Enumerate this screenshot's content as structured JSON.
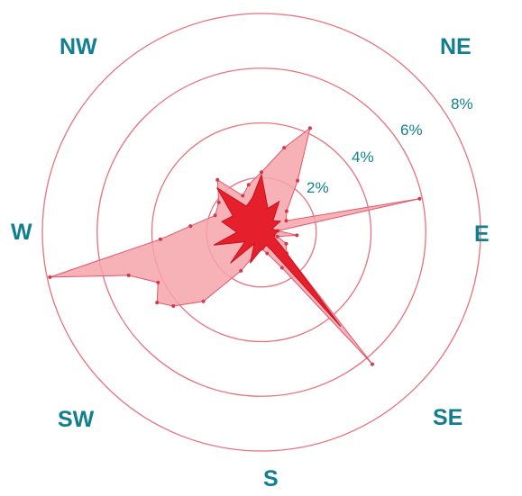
{
  "chart_data": {
    "type": "radar",
    "title": "",
    "directions": [
      "NW",
      "NE",
      "W",
      "E",
      "SW",
      "SE",
      "S"
    ],
    "ring_labels": [
      "2%",
      "4%",
      "6%",
      "8%"
    ],
    "rings": [
      2,
      4,
      6,
      8
    ],
    "max_value": 8,
    "angle_unit": "degrees (compass bearing, 0 = N, clockwise)",
    "colors": {
      "outer_fill": "#f5a5aa",
      "outer_stroke": "#e2566a",
      "inner_fill": "#e5202c",
      "ring": "#e8707f",
      "label": "#127f8e"
    },
    "series": [
      {
        "points": [
          {
            "angle": 0,
            "value": 2.2
          },
          {
            "angle": 15,
            "value": 3.2
          },
          {
            "angle": 25,
            "value": 4.2
          },
          {
            "angle": 35,
            "value": 2.3
          },
          {
            "angle": 50,
            "value": 1.2
          },
          {
            "angle": 65,
            "value": 1.0
          },
          {
            "angle": 78,
            "value": 5.9
          },
          {
            "angle": 85,
            "value": 0.6
          },
          {
            "angle": 95,
            "value": 1.3
          },
          {
            "angle": 105,
            "value": 0.6
          },
          {
            "angle": 115,
            "value": 1.0
          },
          {
            "angle": 130,
            "value": 1.2
          },
          {
            "angle": 140,
            "value": 6.3
          },
          {
            "angle": 150,
            "value": 1.5
          },
          {
            "angle": 165,
            "value": 0.8
          },
          {
            "angle": 180,
            "value": 0.6
          },
          {
            "angle": 195,
            "value": 0.8
          },
          {
            "angle": 208,
            "value": 1.6
          },
          {
            "angle": 220,
            "value": 3.3
          },
          {
            "angle": 230,
            "value": 4.2
          },
          {
            "angle": 236,
            "value": 4.6
          },
          {
            "angle": 244,
            "value": 4.2
          },
          {
            "angle": 252,
            "value": 5.1
          },
          {
            "angle": 258,
            "value": 7.9
          },
          {
            "angle": 266,
            "value": 3.7
          },
          {
            "angle": 275,
            "value": 2.6
          },
          {
            "angle": 290,
            "value": 1.8
          },
          {
            "angle": 305,
            "value": 1.9
          },
          {
            "angle": 320,
            "value": 2.5
          },
          {
            "angle": 333,
            "value": 1.5
          },
          {
            "angle": 345,
            "value": 1.8
          }
        ]
      },
      {
        "points": [
          {
            "angle": 0,
            "value": 2.1
          },
          {
            "angle": 15,
            "value": 0.9
          },
          {
            "angle": 30,
            "value": 1.3
          },
          {
            "angle": 45,
            "value": 0.6
          },
          {
            "angle": 60,
            "value": 0.8
          },
          {
            "angle": 72,
            "value": 0.4
          },
          {
            "angle": 85,
            "value": 0.6
          },
          {
            "angle": 100,
            "value": 0.5
          },
          {
            "angle": 112,
            "value": 0.5
          },
          {
            "angle": 125,
            "value": 0.9
          },
          {
            "angle": 140,
            "value": 4.5
          },
          {
            "angle": 150,
            "value": 0.8
          },
          {
            "angle": 160,
            "value": 0.5
          },
          {
            "angle": 172,
            "value": 0.6
          },
          {
            "angle": 185,
            "value": 0.7
          },
          {
            "angle": 200,
            "value": 1.2
          },
          {
            "angle": 212,
            "value": 0.5
          },
          {
            "angle": 225,
            "value": 1.6
          },
          {
            "angle": 240,
            "value": 0.7
          },
          {
            "angle": 255,
            "value": 1.8
          },
          {
            "angle": 270,
            "value": 0.9
          },
          {
            "angle": 285,
            "value": 1.5
          },
          {
            "angle": 300,
            "value": 1.2
          },
          {
            "angle": 315,
            "value": 2.3
          },
          {
            "angle": 330,
            "value": 1.1
          },
          {
            "angle": 345,
            "value": 1.3
          }
        ]
      }
    ]
  }
}
